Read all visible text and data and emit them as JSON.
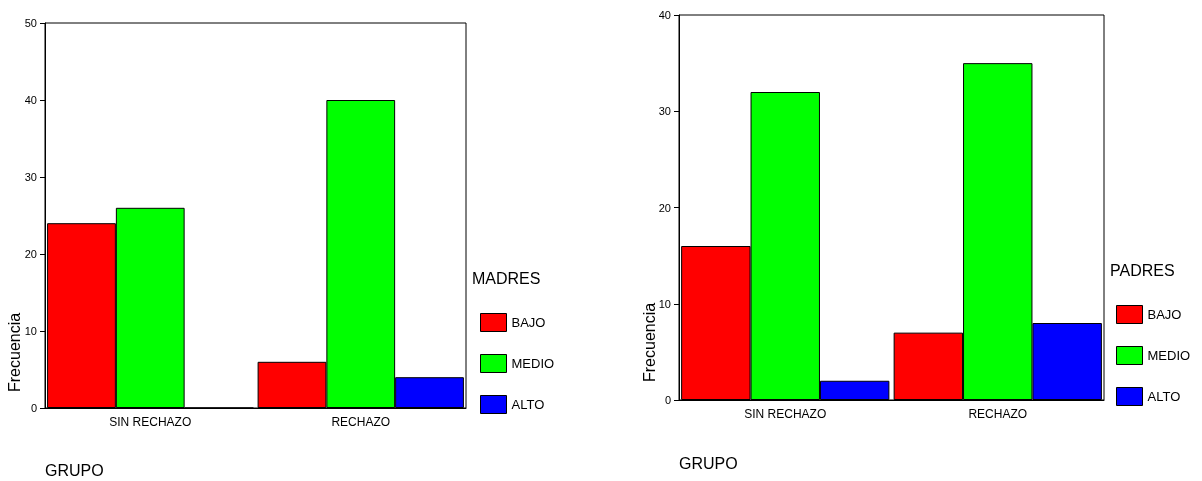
{
  "chart_data": [
    {
      "type": "bar",
      "xlabel": "GRUPO",
      "ylabel": "Frecuencia",
      "legend_title": "MADRES",
      "categories": [
        "SIN RECHAZO",
        "RECHAZO"
      ],
      "ylim": [
        0,
        50
      ],
      "yticks": [
        0,
        10,
        20,
        30,
        40,
        50
      ],
      "grid": false,
      "legend": "right",
      "series": [
        {
          "name": "BAJO",
          "color": "#ff0000",
          "values": [
            24,
            6
          ]
        },
        {
          "name": "MEDIO",
          "color": "#00ff00",
          "values": [
            26,
            40
          ]
        },
        {
          "name": "ALTO",
          "color": "#0000ff",
          "values": [
            0,
            4
          ]
        }
      ]
    },
    {
      "type": "bar",
      "xlabel": "GRUPO",
      "ylabel": "Frecuencia",
      "legend_title": "PADRES",
      "categories": [
        "SIN RECHAZO",
        "RECHAZO"
      ],
      "ylim": [
        0,
        40
      ],
      "yticks": [
        0,
        10,
        20,
        30,
        40
      ],
      "grid": false,
      "legend": "right",
      "series": [
        {
          "name": "BAJO",
          "color": "#ff0000",
          "values": [
            16,
            7
          ]
        },
        {
          "name": "MEDIO",
          "color": "#00ff00",
          "values": [
            32,
            35
          ]
        },
        {
          "name": "ALTO",
          "color": "#0000ff",
          "values": [
            2,
            8
          ]
        }
      ]
    }
  ]
}
